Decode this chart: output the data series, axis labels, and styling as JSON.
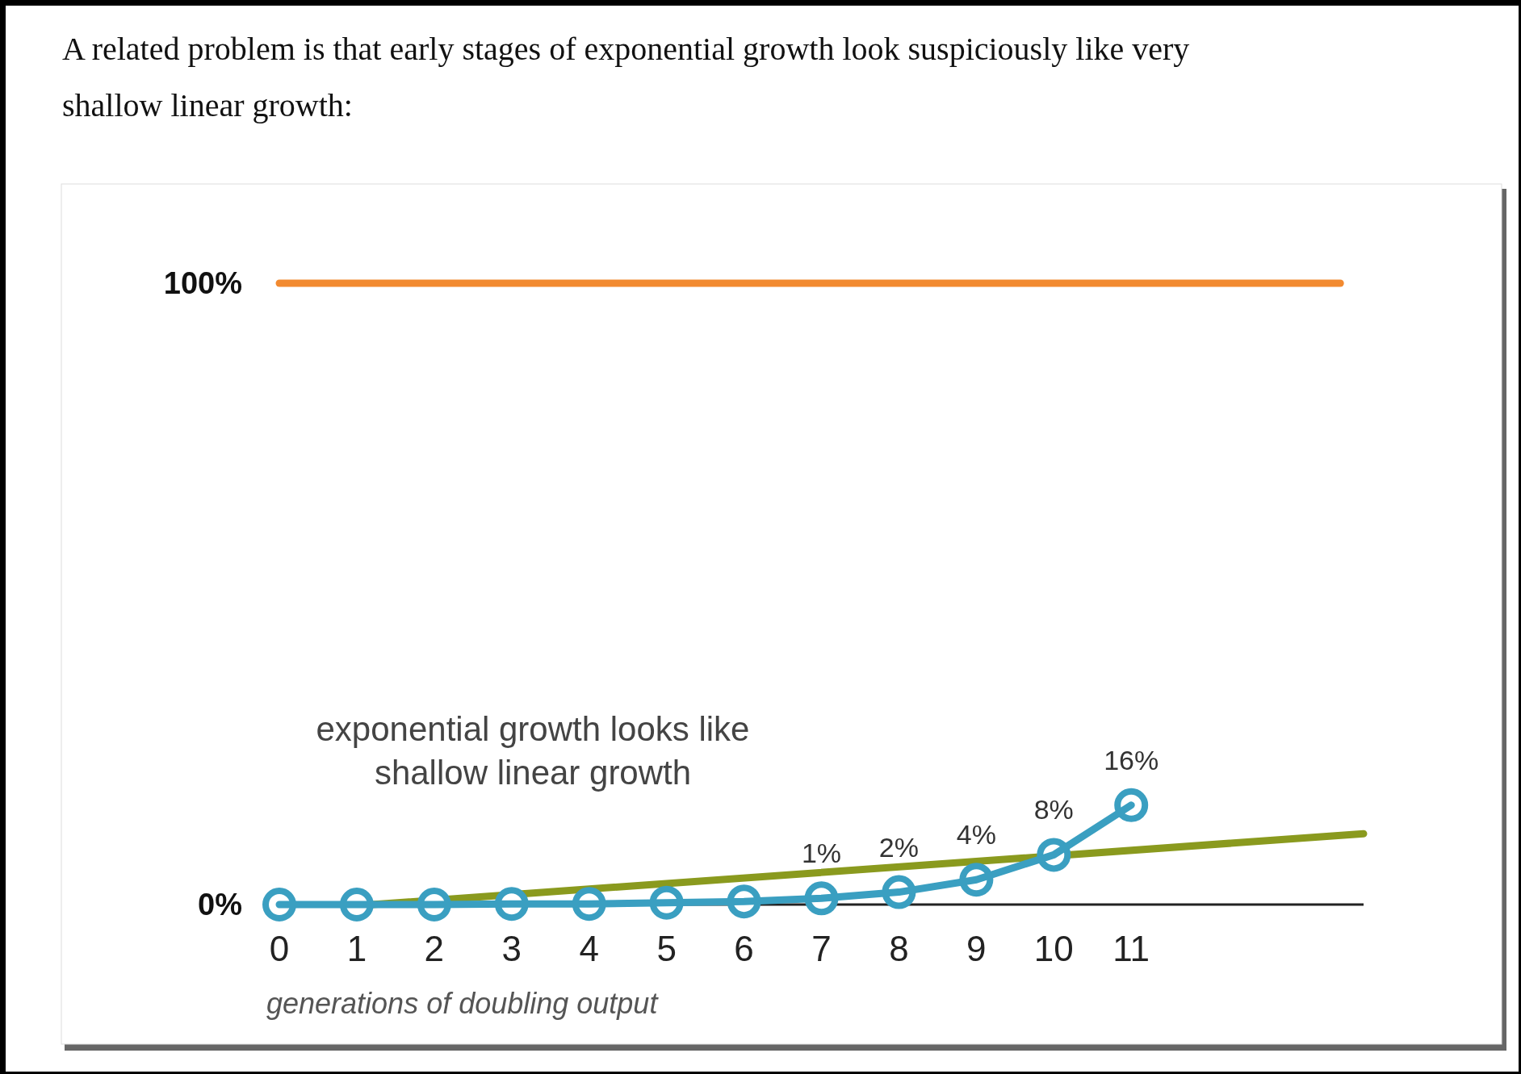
{
  "chart_data": {
    "type": "line",
    "title": "A related problem is that early stages of exponential growth look suspiciously like very shallow linear growth:",
    "xlabel": "generations of doubling output",
    "annotations": [
      "exponential growth looks like\nshallow linear growth"
    ],
    "xlim": [
      0,
      14
    ],
    "xticks": [
      0,
      1,
      2,
      3,
      4,
      5,
      6,
      7,
      8,
      9,
      10,
      11
    ],
    "ylim": [
      0,
      100
    ],
    "yticks": [
      {
        "value": 0,
        "label": "0%"
      },
      {
        "value": 100,
        "label": "100%"
      }
    ],
    "grid": false,
    "line_style": "solid",
    "series": [
      {
        "color": "#f28a30",
        "x": [
          0,
          13.7
        ],
        "values": [
          100,
          100
        ],
        "marker": "none"
      },
      {
        "color": "#8a9a1e",
        "x": [
          1.2,
          14
        ],
        "values": [
          0,
          11.4
        ],
        "marker": "none"
      },
      {
        "color": "#3a9fc1",
        "x": [
          0,
          1,
          2,
          3,
          4,
          5,
          6,
          7,
          8,
          9,
          10,
          11
        ],
        "values": [
          0,
          0,
          0,
          0.1,
          0.1,
          0.3,
          0.5,
          1,
          2,
          4,
          8,
          16
        ],
        "marker": "circle",
        "value_labels": [
          null,
          null,
          null,
          null,
          null,
          null,
          null,
          "1%",
          "2%",
          "4%",
          "8%",
          "16%"
        ]
      }
    ]
  }
}
